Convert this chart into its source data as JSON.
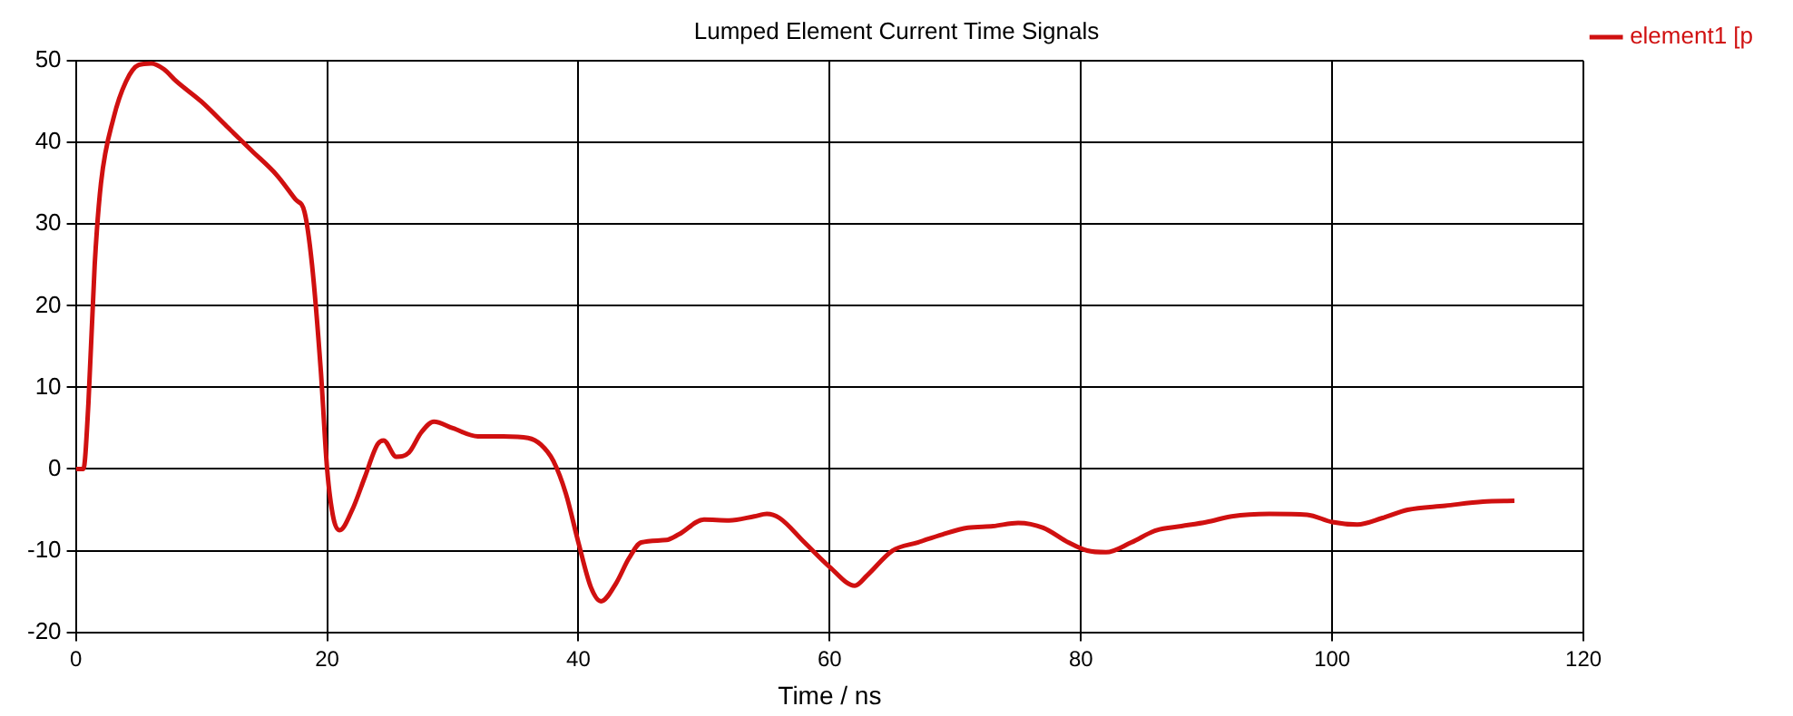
{
  "chart_data": {
    "type": "line",
    "title": "Lumped Element Current Time Signals",
    "xlabel": "Time / ns",
    "x": [
      0,
      0.6,
      1,
      1.5,
      2,
      3,
      4,
      5,
      6,
      7,
      8,
      10,
      12,
      14,
      16,
      17.5,
      18.2,
      18.8,
      19.5,
      20,
      20.5,
      21,
      22,
      23,
      24,
      24.5,
      25.5,
      26.5,
      27.5,
      28.5,
      30,
      32,
      34,
      36,
      37,
      38,
      39,
      40,
      41,
      41.8,
      43,
      44,
      45,
      47,
      48,
      50,
      52,
      54,
      55,
      56,
      58,
      60,
      62,
      63,
      65,
      67,
      69,
      71,
      73,
      75,
      77,
      79,
      80.5,
      82,
      84,
      86,
      88,
      90,
      92,
      95,
      98,
      100,
      102,
      104,
      106,
      109,
      112,
      114.5
    ],
    "series": [
      {
        "name": "element1 [p",
        "color": "#d01010",
        "values": [
          0,
          0,
          8,
          25,
          35,
          43,
          47.5,
          49.5,
          49.7,
          49,
          47.5,
          45,
          42,
          39,
          36,
          33,
          31.5,
          25,
          12,
          0,
          -6,
          -7.5,
          -5,
          -1,
          3,
          3.5,
          1.5,
          2,
          4.5,
          5.8,
          5,
          4,
          4,
          3.8,
          3,
          1,
          -3,
          -9,
          -14.5,
          -16.2,
          -14,
          -11,
          -9,
          -8.7,
          -8,
          -6.2,
          -6.3,
          -5.8,
          -5.5,
          -6,
          -9,
          -12,
          -14.3,
          -13,
          -10,
          -9,
          -8,
          -7.2,
          -7,
          -6.6,
          -7.2,
          -9,
          -10,
          -10.2,
          -9,
          -7.5,
          -7,
          -6.5,
          -5.8,
          -5.5,
          -5.6,
          -6.5,
          -6.8,
          -6,
          -5,
          -4.5,
          -4,
          -3.9
        ]
      }
    ],
    "xlim": [
      0,
      120
    ],
    "xticks": [
      0,
      20,
      40,
      60,
      80,
      100,
      120
    ],
    "ylim": [
      -20,
      50
    ],
    "yticks": [
      -20,
      -10,
      0,
      10,
      20,
      30,
      40,
      50
    ],
    "grid": true,
    "legend": "top right",
    "marker": "none",
    "line_style": "solid"
  }
}
